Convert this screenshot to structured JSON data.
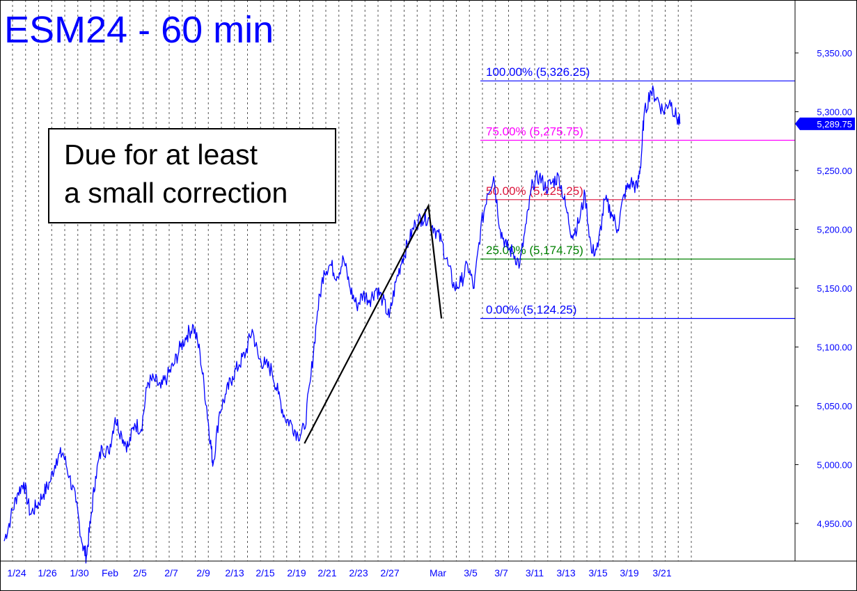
{
  "chart_data": {
    "type": "line",
    "title": "ESM24 - 60 min",
    "ylim": [
      4918,
      5395
    ],
    "yticks": [
      4950,
      5000,
      5050,
      5100,
      5150,
      5200,
      5250,
      5300,
      5350
    ],
    "ytick_labels": [
      "4,950.00",
      "5,000.00",
      "5,050.00",
      "5,100.00",
      "5,150.00",
      "5,200.00",
      "5,250.00",
      "5,300.00",
      "5,350.00"
    ],
    "x_categories": [
      "1/24",
      "1/26",
      "1/30",
      "Feb",
      "2/5",
      "2/7",
      "2/9",
      "2/13",
      "2/15",
      "2/19",
      "2/21",
      "2/23",
      "2/27",
      "Mar",
      "3/5",
      "3/7",
      "3/11",
      "3/13",
      "3/15",
      "3/19",
      "3/21"
    ],
    "grid": {
      "vertical_dashed": true
    },
    "series": [
      {
        "color": "#0000ff",
        "points": [
          [
            0.0,
            4935
          ],
          [
            0.5,
            4955
          ],
          [
            1.0,
            4975
          ],
          [
            1.5,
            4985
          ],
          [
            2.0,
            4958
          ],
          [
            2.5,
            4965
          ],
          [
            3.0,
            4975
          ],
          [
            3.5,
            4985
          ],
          [
            4.0,
            5005
          ],
          [
            4.5,
            5010
          ],
          [
            5.0,
            4990
          ],
          [
            5.5,
            4968
          ],
          [
            6.0,
            4932
          ],
          [
            6.3,
            4922
          ],
          [
            6.6,
            4950
          ],
          [
            7.0,
            4990
          ],
          [
            7.5,
            5015
          ],
          [
            8.0,
            5010
          ],
          [
            8.5,
            5040
          ],
          [
            9.0,
            5025
          ],
          [
            9.5,
            5015
          ],
          [
            10.0,
            5035
          ],
          [
            10.5,
            5030
          ],
          [
            11.0,
            5070
          ],
          [
            11.5,
            5072
          ],
          [
            12.0,
            5065
          ],
          [
            12.5,
            5075
          ],
          [
            13.0,
            5085
          ],
          [
            13.5,
            5100
          ],
          [
            14.0,
            5110
          ],
          [
            14.5,
            5118
          ],
          [
            15.0,
            5095
          ],
          [
            15.5,
            5050
          ],
          [
            15.8,
            5020
          ],
          [
            16.0,
            5000
          ],
          [
            16.5,
            5045
          ],
          [
            17.0,
            5060
          ],
          [
            17.5,
            5075
          ],
          [
            18.0,
            5085
          ],
          [
            18.5,
            5095
          ],
          [
            19.0,
            5115
          ],
          [
            19.5,
            5090
          ],
          [
            20.0,
            5085
          ],
          [
            20.5,
            5080
          ],
          [
            21.0,
            5060
          ],
          [
            21.5,
            5040
          ],
          [
            22.0,
            5035
          ],
          [
            22.5,
            5025
          ],
          [
            23.0,
            5030
          ],
          [
            23.5,
            5075
          ],
          [
            24.0,
            5130
          ],
          [
            24.5,
            5165
          ],
          [
            25.0,
            5170
          ],
          [
            25.5,
            5160
          ],
          [
            26.0,
            5175
          ],
          [
            26.5,
            5150
          ],
          [
            27.0,
            5135
          ],
          [
            27.5,
            5145
          ],
          [
            28.0,
            5140
          ],
          [
            28.5,
            5150
          ],
          [
            29.0,
            5140
          ],
          [
            29.5,
            5125
          ],
          [
            30.0,
            5155
          ],
          [
            30.5,
            5175
          ],
          [
            31.0,
            5190
          ],
          [
            31.5,
            5205
          ],
          [
            32.0,
            5210
          ],
          [
            32.5,
            5210
          ],
          [
            33.0,
            5200
          ],
          [
            33.5,
            5190
          ],
          [
            34.0,
            5170
          ],
          [
            34.5,
            5150
          ],
          [
            35.0,
            5155
          ],
          [
            35.5,
            5170
          ],
          [
            36.0,
            5150
          ],
          [
            36.5,
            5200
          ],
          [
            37.0,
            5230
          ],
          [
            37.5,
            5245
          ],
          [
            38.0,
            5200
          ],
          [
            38.5,
            5185
          ],
          [
            39.0,
            5180
          ],
          [
            39.5,
            5170
          ],
          [
            40.0,
            5205
          ],
          [
            40.5,
            5240
          ],
          [
            41.0,
            5245
          ],
          [
            41.5,
            5235
          ],
          [
            42.0,
            5240
          ],
          [
            42.5,
            5245
          ],
          [
            43.0,
            5220
          ],
          [
            43.5,
            5195
          ],
          [
            44.0,
            5205
          ],
          [
            44.5,
            5230
          ],
          [
            45.0,
            5180
          ],
          [
            45.5,
            5185
          ],
          [
            46.0,
            5225
          ],
          [
            46.5,
            5215
          ],
          [
            47.0,
            5200
          ],
          [
            47.5,
            5230
          ],
          [
            48.0,
            5240
          ],
          [
            48.5,
            5235
          ],
          [
            48.8,
            5260
          ],
          [
            49.0,
            5295
          ],
          [
            49.5,
            5318
          ],
          [
            50.0,
            5312
          ],
          [
            50.5,
            5300
          ],
          [
            51.0,
            5310
          ],
          [
            51.5,
            5295
          ],
          [
            51.8,
            5290
          ]
        ]
      }
    ],
    "fib_levels": [
      {
        "value": 5326.25,
        "label": "100.00% (5,326.25)",
        "color": "#0000ff"
      },
      {
        "value": 5275.75,
        "label": "75.00% (5,275.75)",
        "color": "#ff00ff"
      },
      {
        "value": 5225.25,
        "label": "50.00% (5,225.25)",
        "color": "#dc143c"
      },
      {
        "value": 5174.75,
        "label": "25.00% (5,174.75)",
        "color": "#008000"
      },
      {
        "value": 5124.25,
        "label": "0.00% (5,124.25)",
        "color": "#0000ff"
      }
    ],
    "pattern_line": [
      [
        23.0,
        5018
      ],
      [
        32.5,
        5220
      ],
      [
        33.5,
        5124.25
      ]
    ],
    "annotation": [
      "Due for at least",
      "a small correction"
    ],
    "last_price": {
      "value": 5289.75,
      "label": "5,289.75",
      "color": "#0000ff"
    }
  }
}
